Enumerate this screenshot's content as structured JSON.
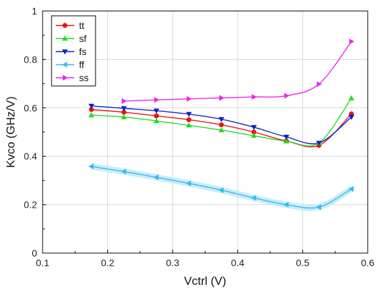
{
  "chart_data": {
    "type": "line",
    "title": "",
    "xlabel": "Vctrl (V)",
    "ylabel": "Kvco (GHz/V)",
    "xlim": [
      0.1,
      0.6
    ],
    "ylim": [
      0,
      1
    ],
    "xticks": [
      "0.1",
      "0.2",
      "0.3",
      "0.4",
      "0.5",
      "0.6"
    ],
    "yticks": [
      "0",
      "0.2",
      "0.4",
      "0.6",
      "0.8",
      "1"
    ],
    "grid": true,
    "legend_position": "top-left",
    "series": [
      {
        "name": "tt",
        "color": "#ee1111",
        "marker": "circle",
        "x": [
          0.175,
          0.225,
          0.275,
          0.325,
          0.375,
          0.425,
          0.475,
          0.525,
          0.575
        ],
        "y": [
          0.593,
          0.582,
          0.567,
          0.551,
          0.53,
          0.5,
          0.463,
          0.445,
          0.575
        ]
      },
      {
        "name": "sf",
        "color": "#22dd22",
        "marker": "triangle-up",
        "x": [
          0.175,
          0.225,
          0.275,
          0.325,
          0.375,
          0.425,
          0.475,
          0.525,
          0.575
        ],
        "y": [
          0.57,
          0.562,
          0.546,
          0.528,
          0.508,
          0.485,
          0.462,
          0.455,
          0.64
        ]
      },
      {
        "name": "fs",
        "color": "#1122cc",
        "marker": "triangle-down",
        "x": [
          0.175,
          0.225,
          0.275,
          0.325,
          0.375,
          0.425,
          0.475,
          0.525,
          0.575
        ],
        "y": [
          0.608,
          0.598,
          0.588,
          0.574,
          0.553,
          0.52,
          0.48,
          0.455,
          0.562
        ]
      },
      {
        "name": "ff",
        "color": "#33bbee",
        "marker": "triangle-left",
        "x": [
          0.175,
          0.225,
          0.275,
          0.325,
          0.375,
          0.425,
          0.475,
          0.525,
          0.575
        ],
        "y": [
          0.358,
          0.337,
          0.313,
          0.288,
          0.26,
          0.228,
          0.2,
          0.19,
          0.265
        ]
      },
      {
        "name": "ss",
        "color": "#ee22ee",
        "marker": "triangle-right",
        "x": [
          0.225,
          0.275,
          0.325,
          0.375,
          0.425,
          0.475,
          0.525,
          0.575
        ],
        "y": [
          0.628,
          0.633,
          0.637,
          0.641,
          0.645,
          0.65,
          0.698,
          0.874
        ]
      }
    ]
  }
}
